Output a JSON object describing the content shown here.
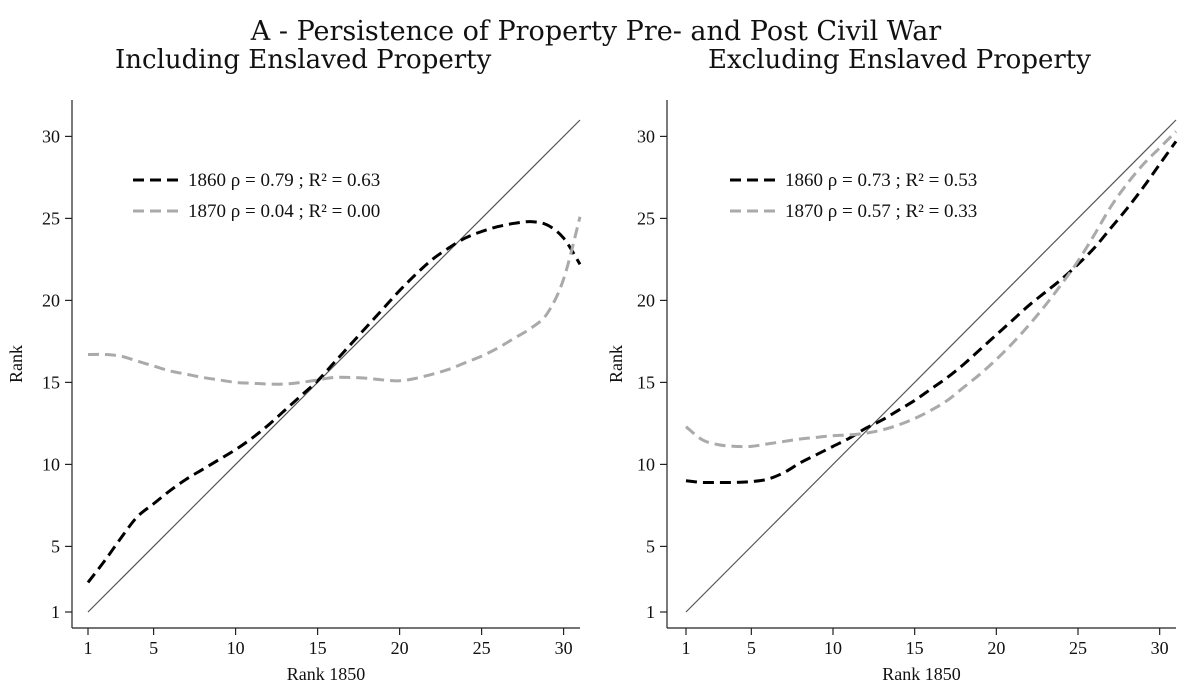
{
  "main_title": "A - Persistence of Property Pre- and Post Civil War",
  "chart_data": [
    {
      "type": "line",
      "title": "Including Enslaved Property",
      "xlabel": "Rank 1850",
      "ylabel": "Rank",
      "xlim": [
        1,
        31
      ],
      "ylim": [
        1,
        31
      ],
      "x_ticks": [
        1,
        5,
        10,
        15,
        20,
        25,
        30
      ],
      "y_ticks": [
        1,
        5,
        10,
        15,
        20,
        25,
        30
      ],
      "grid": false,
      "legend_position": "top-left",
      "reference_line": [
        [
          1,
          1
        ],
        [
          31,
          31
        ]
      ],
      "series": [
        {
          "name": "1860 ρ = 0.79 ; R² = 0.63",
          "color": "#000000",
          "dash": "dashed",
          "x": [
            1,
            2,
            3,
            4,
            5,
            6,
            7,
            8,
            9,
            10,
            11,
            12,
            13,
            14,
            15,
            16,
            17,
            18,
            19,
            20,
            21,
            22,
            23,
            24,
            25,
            26,
            27,
            28,
            29,
            30,
            31
          ],
          "y": [
            2.8,
            4.1,
            5.5,
            6.8,
            7.6,
            8.4,
            9.1,
            9.7,
            10.3,
            10.9,
            11.6,
            12.4,
            13.3,
            14.2,
            15.1,
            16.2,
            17.3,
            18.4,
            19.5,
            20.6,
            21.6,
            22.5,
            23.2,
            23.8,
            24.2,
            24.5,
            24.7,
            24.8,
            24.6,
            23.8,
            22.2
          ]
        },
        {
          "name": "1870 ρ = 0.04 ; R² = 0.00",
          "color": "#aaaaaa",
          "dash": "dashed",
          "x": [
            1,
            2,
            3,
            4,
            5,
            6,
            7,
            8,
            9,
            10,
            11,
            12,
            13,
            14,
            15,
            16,
            17,
            18,
            19,
            20,
            21,
            22,
            23,
            24,
            25,
            26,
            27,
            28,
            29,
            30,
            31
          ],
          "y": [
            16.7,
            16.7,
            16.6,
            16.3,
            16.0,
            15.7,
            15.5,
            15.3,
            15.15,
            15.0,
            14.95,
            14.9,
            14.9,
            15.0,
            15.15,
            15.3,
            15.3,
            15.25,
            15.15,
            15.1,
            15.25,
            15.5,
            15.8,
            16.2,
            16.6,
            17.1,
            17.7,
            18.3,
            19.2,
            21.3,
            25.1
          ]
        }
      ]
    },
    {
      "type": "line",
      "title": "Excluding Enslaved Property",
      "xlabel": "Rank 1850",
      "ylabel": "Rank",
      "xlim": [
        1,
        31
      ],
      "ylim": [
        1,
        31
      ],
      "x_ticks": [
        1,
        5,
        10,
        15,
        20,
        25,
        30
      ],
      "y_ticks": [
        1,
        5,
        10,
        15,
        20,
        25,
        30
      ],
      "grid": false,
      "legend_position": "top-left",
      "reference_line": [
        [
          1,
          1
        ],
        [
          31,
          31
        ]
      ],
      "series": [
        {
          "name": "1860 ρ = 0.73 ; R² = 0.53",
          "color": "#000000",
          "dash": "dashed",
          "x": [
            1,
            2,
            3,
            4,
            5,
            6,
            7,
            8,
            9,
            10,
            11,
            12,
            13,
            14,
            15,
            16,
            17,
            18,
            19,
            20,
            21,
            22,
            23,
            24,
            25,
            26,
            27,
            28,
            29,
            30,
            31
          ],
          "y": [
            9.0,
            8.9,
            8.9,
            8.9,
            8.95,
            9.1,
            9.5,
            10.1,
            10.6,
            11.1,
            11.6,
            12.2,
            12.7,
            13.3,
            13.9,
            14.6,
            15.3,
            16.1,
            17.0,
            17.9,
            18.8,
            19.7,
            20.5,
            21.3,
            22.2,
            23.2,
            24.4,
            25.6,
            26.9,
            28.3,
            29.7
          ]
        },
        {
          "name": "1870 ρ = 0.57 ; R² = 0.33",
          "color": "#aaaaaa",
          "dash": "dashed",
          "x": [
            1,
            2,
            3,
            4,
            5,
            6,
            7,
            8,
            9,
            10,
            11,
            12,
            13,
            14,
            15,
            16,
            17,
            18,
            19,
            20,
            21,
            22,
            23,
            24,
            25,
            26,
            27,
            28,
            29,
            30,
            31
          ],
          "y": [
            12.3,
            11.5,
            11.2,
            11.1,
            11.1,
            11.25,
            11.4,
            11.55,
            11.65,
            11.75,
            11.8,
            11.9,
            12.1,
            12.4,
            12.8,
            13.3,
            13.9,
            14.7,
            15.5,
            16.4,
            17.4,
            18.5,
            19.7,
            21.0,
            22.4,
            24.0,
            25.7,
            27.1,
            28.3,
            29.3,
            30.3
          ]
        }
      ]
    }
  ]
}
